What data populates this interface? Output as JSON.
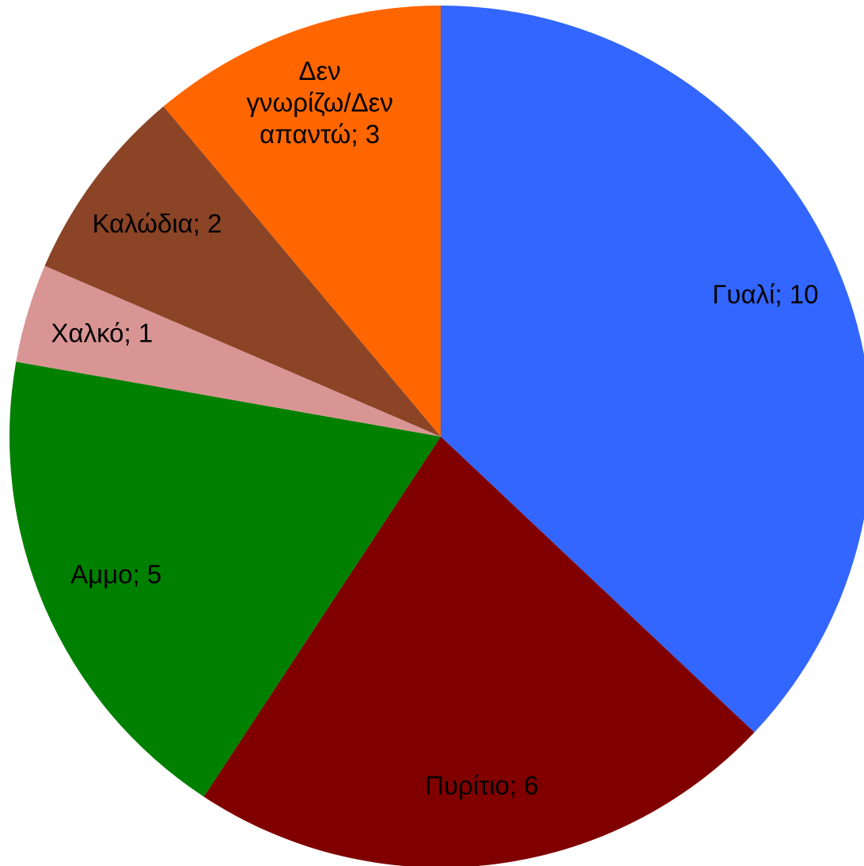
{
  "chart_data": {
    "type": "pie",
    "values": [
      10,
      6,
      5,
      1,
      2,
      3
    ],
    "value_labels": [
      "Γυαλί; 10",
      "Πυρίτιο; 6",
      "Αμμο; 5",
      "Χαλκό; 1",
      "Καλώδια; 2",
      "Δεν γνωρίζω/Δεν απαντώ; 3"
    ],
    "colors": [
      "#3366ff",
      "#800000",
      "#008000",
      "#d99594",
      "#8b4426",
      "#ff6600"
    ]
  }
}
